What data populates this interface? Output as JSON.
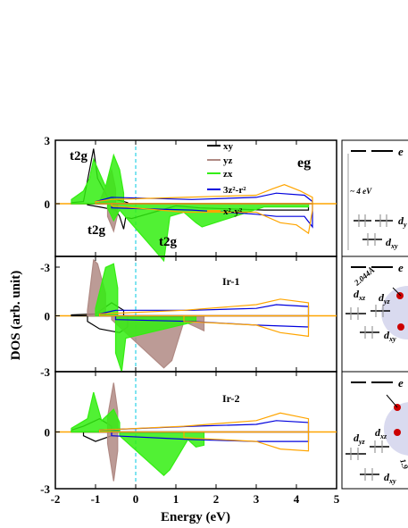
{
  "chart_data": {
    "type": "line",
    "xlabel": "Energy (eV)",
    "ylabel": "DOS (arb. unit)",
    "xlim": [
      -2,
      5
    ],
    "ylim": [
      -3,
      3
    ],
    "xticks": [
      "-2",
      "-1",
      "0",
      "1",
      "2",
      "3",
      "4",
      "5"
    ],
    "yticks_top": [
      "3",
      "0",
      "-3"
    ],
    "yticks_mid": [
      "0",
      "-3"
    ],
    "yticks_bot": [
      "0",
      "-3"
    ],
    "fermi_level": 0,
    "colors": {
      "xy": "#000000",
      "yz": "#b08a84",
      "zx": "#33ee11",
      "z2": "#0000dd",
      "x2y2": "#ffa500",
      "fermi": "#00c8e0"
    },
    "legend": [
      "xy",
      "yz",
      "zx",
      "3z²-r²",
      "x²-y²"
    ],
    "panels": [
      {
        "label": "",
        "annotations": {
          "t2g_up": "t2g",
          "t2g_down": "t2g",
          "t2g_un": "t2g",
          "eg": "eg"
        },
        "series": [
          {
            "name": "xy",
            "up": [
              [
                -1.6,
                0.05
              ],
              [
                -1.3,
                0.1
              ],
              [
                -1.05,
                2.6
              ],
              [
                -0.95,
                1.2
              ],
              [
                -0.7,
                0.3
              ],
              [
                -0.5,
                0.2
              ],
              [
                -0.3,
                0.1
              ],
              [
                -0.2,
                0.05
              ]
            ],
            "down": [
              [
                -1.2,
                -0.05
              ],
              [
                -0.9,
                -0.15
              ],
              [
                -0.5,
                -0.3
              ],
              [
                -0.4,
                -0.6
              ],
              [
                -0.3,
                -1.2
              ],
              [
                -0.25,
                -0.65
              ],
              [
                -0.1,
                -0.7
              ],
              [
                1.0,
                -0.1
              ],
              [
                1.6,
                -0.2
              ],
              [
                3.2,
                -0.3
              ],
              [
                4.3,
                -0.3
              ]
            ]
          },
          {
            "name": "yz",
            "up": [
              [
                -0.9,
                0.1
              ],
              [
                -0.75,
                0.8
              ],
              [
                -0.6,
                1.6
              ],
              [
                -0.5,
                0.7
              ]
            ],
            "down": [
              [
                -0.7,
                -0.6
              ],
              [
                -0.55,
                -1.3
              ],
              [
                -0.45,
                -0.5
              ]
            ]
          },
          {
            "name": "zx",
            "up": [
              [
                -1.6,
                0.2
              ],
              [
                -1.3,
                0.6
              ],
              [
                -1.15,
                1.2
              ],
              [
                -1.05,
                2.1
              ],
              [
                -0.75,
                0.8
              ],
              [
                -0.55,
                2.3
              ],
              [
                -0.4,
                1.6
              ],
              [
                -0.3,
                0.5
              ]
            ],
            "down": [
              [
                -0.7,
                -0.2
              ],
              [
                -0.55,
                -0.8
              ],
              [
                -0.4,
                -0.3
              ],
              [
                0.7,
                -2.7
              ],
              [
                0.85,
                -0.6
              ],
              [
                1.2,
                -0.4
              ],
              [
                1.5,
                -0.9
              ],
              [
                1.65,
                -1.1
              ],
              [
                3.2,
                -0.15
              ],
              [
                4.3,
                -0.15
              ]
            ]
          },
          {
            "name": "3z²-r²",
            "up": [
              [
                -1.0,
                0.1
              ],
              [
                -0.6,
                0.3
              ],
              [
                1.4,
                0.2
              ],
              [
                3.0,
                0.3
              ],
              [
                3.5,
                0.5
              ],
              [
                4.2,
                0.4
              ],
              [
                4.4,
                0.1
              ]
            ],
            "down": [
              [
                -0.6,
                -0.2
              ],
              [
                1.4,
                -0.3
              ],
              [
                3.0,
                -0.5
              ],
              [
                3.5,
                -0.6
              ],
              [
                4.2,
                -0.6
              ],
              [
                4.4,
                -1.1
              ]
            ]
          },
          {
            "name": "x²-y²",
            "up": [
              [
                -1.0,
                0.1
              ],
              [
                -0.6,
                0.2
              ],
              [
                1.2,
                0.3
              ],
              [
                3.0,
                0.4
              ],
              [
                3.4,
                0.7
              ],
              [
                3.7,
                0.9
              ],
              [
                4.1,
                0.6
              ],
              [
                4.4,
                0.3
              ]
            ],
            "down": [
              [
                -0.6,
                -0.1
              ],
              [
                1.2,
                -0.4
              ],
              [
                3.0,
                -0.4
              ],
              [
                3.6,
                -0.9
              ],
              [
                4.0,
                -1.0
              ],
              [
                4.3,
                -1.4
              ],
              [
                4.4,
                -0.3
              ]
            ]
          }
        ]
      },
      {
        "label": "Ir-1",
        "annotations": {},
        "series": [
          {
            "name": "xy",
            "up": [
              [
                -1.6,
                0.05
              ],
              [
                -1.0,
                0.1
              ],
              [
                -0.6,
                0.7
              ],
              [
                -0.3,
                0.3
              ]
            ],
            "down": [
              [
                -1.2,
                -0.3
              ],
              [
                -0.9,
                -0.7
              ],
              [
                -0.4,
                -0.9
              ],
              [
                -0.2,
                -0.6
              ]
            ]
          },
          {
            "name": "yz",
            "up": [
              [
                -1.2,
                0.3
              ],
              [
                -1.05,
                3.0
              ],
              [
                -0.95,
                2.8
              ],
              [
                -0.75,
                1.2
              ]
            ],
            "down": [
              [
                -0.6,
                -0.2
              ],
              [
                0.7,
                -2.8
              ],
              [
                0.9,
                -2.4
              ],
              [
                1.2,
                -0.3
              ],
              [
                1.5,
                -0.6
              ],
              [
                1.7,
                -0.8
              ]
            ]
          },
          {
            "name": "zx",
            "up": [
              [
                -1.0,
                0.4
              ],
              [
                -0.75,
                2.6
              ],
              [
                -0.55,
                2.8
              ],
              [
                -0.45,
                1.5
              ]
            ],
            "down": [
              [
                -0.5,
                -2.0
              ],
              [
                -0.35,
                -3.0
              ],
              [
                -0.25,
                -1.2
              ],
              [
                1.5,
                -0.3
              ]
            ]
          },
          {
            "name": "3z²-r²",
            "up": [
              [
                -0.9,
                0.1
              ],
              [
                -0.5,
                0.3
              ],
              [
                1.4,
                0.3
              ],
              [
                3.0,
                0.4
              ],
              [
                3.5,
                0.6
              ],
              [
                4.3,
                0.5
              ]
            ],
            "down": [
              [
                -0.5,
                -0.2
              ],
              [
                1.4,
                -0.3
              ],
              [
                3.0,
                -0.5
              ],
              [
                4.3,
                -0.6
              ]
            ]
          },
          {
            "name": "x²-y²",
            "up": [
              [
                -0.9,
                0.1
              ],
              [
                1.2,
                0.3
              ],
              [
                3.0,
                0.6
              ],
              [
                3.6,
                0.9
              ],
              [
                4.3,
                0.7
              ]
            ],
            "down": [
              [
                1.2,
                -0.3
              ],
              [
                3.0,
                -0.5
              ],
              [
                3.6,
                -0.9
              ],
              [
                4.3,
                -1.1
              ]
            ]
          }
        ]
      },
      {
        "label": "Ir-2",
        "annotations": {},
        "series": [
          {
            "name": "xy",
            "up": [
              [
                -1.6,
                0.1
              ],
              [
                -1.3,
                0.3
              ],
              [
                -0.9,
                0.7
              ],
              [
                -0.6,
                0.3
              ]
            ],
            "down": [
              [
                -1.3,
                -0.2
              ],
              [
                -1.0,
                -0.5
              ],
              [
                -0.6,
                -0.2
              ]
            ]
          },
          {
            "name": "yz",
            "up": [
              [
                -0.7,
                0.8
              ],
              [
                -0.55,
                2.6
              ],
              [
                -0.45,
                1.1
              ]
            ],
            "down": [
              [
                -0.7,
                -0.6
              ],
              [
                -0.55,
                -2.6
              ],
              [
                -0.45,
                -1.0
              ]
            ]
          },
          {
            "name": "zx",
            "up": [
              [
                -1.6,
                0.2
              ],
              [
                -1.2,
                0.7
              ],
              [
                -1.05,
                2.1
              ],
              [
                -0.85,
                0.6
              ],
              [
                -0.55,
                1.2
              ],
              [
                -0.4,
                0.5
              ]
            ],
            "down": [
              [
                -0.4,
                -0.2
              ],
              [
                0.7,
                -2.3
              ],
              [
                0.85,
                -2.0
              ],
              [
                1.3,
                -0.4
              ],
              [
                1.5,
                -0.8
              ],
              [
                1.7,
                -0.7
              ]
            ]
          },
          {
            "name": "3z²-r²",
            "up": [
              [
                -0.9,
                0.1
              ],
              [
                1.4,
                0.3
              ],
              [
                3.0,
                0.4
              ],
              [
                3.5,
                0.6
              ],
              [
                4.3,
                0.5
              ]
            ],
            "down": [
              [
                -0.6,
                -0.2
              ],
              [
                1.4,
                -0.4
              ],
              [
                3.0,
                -0.5
              ],
              [
                4.3,
                -0.5
              ]
            ]
          },
          {
            "name": "x²-y²",
            "up": [
              [
                -0.9,
                0.1
              ],
              [
                1.2,
                0.3
              ],
              [
                3.0,
                0.6
              ],
              [
                3.6,
                1.0
              ],
              [
                4.3,
                0.7
              ]
            ],
            "down": [
              [
                1.2,
                -0.3
              ],
              [
                3.0,
                -0.5
              ],
              [
                3.6,
                -0.9
              ],
              [
                4.3,
                -1.0
              ]
            ]
          }
        ]
      }
    ]
  },
  "schematics": [
    {
      "eg": "e",
      "energy": "~ 4 eV",
      "d_y": "d",
      "d_y_sub": "y",
      "d_xy": "d",
      "d_xy_sub": "xy"
    },
    {
      "eg": "e",
      "bond": "2.044Å",
      "d_xz": "d",
      "d_xz_sub": "xz",
      "d_yz": "d",
      "d_yz_sub": "yz",
      "d_xy": "d",
      "d_xy_sub": "xy"
    },
    {
      "eg": "e",
      "bond": "1.9",
      "d_yz": "d",
      "d_yz_sub": "yz",
      "d_xz": "d",
      "d_xz_sub": "xz",
      "d_xy": "d",
      "d_xy_sub": "xy"
    }
  ]
}
